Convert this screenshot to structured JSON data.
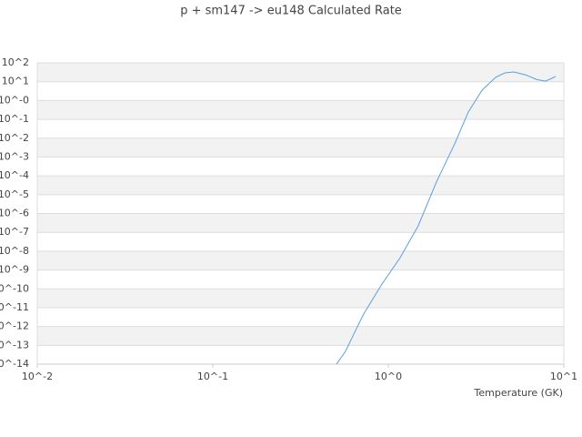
{
  "chart_data": {
    "type": "line",
    "title": "p + sm147 -> eu148 Calculated Rate",
    "x_label": "Temperature (GK)",
    "xscale": "log",
    "yscale": "log",
    "xlim": [
      0.01,
      10
    ],
    "xticks": [
      {
        "value": 0.01,
        "label": "10^-2"
      },
      {
        "value": 0.1,
        "label": "10^-1"
      },
      {
        "value": 1,
        "label": "10^0"
      },
      {
        "value": 10,
        "label": "10^1"
      }
    ],
    "ylim": [
      1e-14,
      100
    ],
    "yticks": [
      {
        "value": 100,
        "label": "10^2"
      },
      {
        "value": 10,
        "label": "10^1"
      },
      {
        "value": 1,
        "label": "10^-0"
      },
      {
        "value": 0.1,
        "label": "10^-1"
      },
      {
        "value": 0.01,
        "label": "10^-2"
      },
      {
        "value": 0.001,
        "label": "10^-3"
      },
      {
        "value": 0.0001,
        "label": "10^-4"
      },
      {
        "value": 1e-05,
        "label": "10^-5"
      },
      {
        "value": 1e-06,
        "label": "10^-6"
      },
      {
        "value": 1e-07,
        "label": "10^-7"
      },
      {
        "value": 1e-08,
        "label": "10^-8"
      },
      {
        "value": 1e-09,
        "label": "10^-9"
      },
      {
        "value": 1e-10,
        "label": "10^-10"
      },
      {
        "value": 1e-11,
        "label": "10^-11"
      },
      {
        "value": 1e-12,
        "label": "10^-12"
      },
      {
        "value": 1e-13,
        "label": "10^-13"
      },
      {
        "value": 1e-14,
        "label": "10^-14"
      }
    ],
    "grid": true,
    "band_color": "#f2f2f2",
    "x": [
      0.507,
      0.57,
      0.643,
      0.724,
      0.92,
      1.17,
      1.48,
      1.88,
      2.39,
      2.86,
      3.42,
      4.09,
      4.6,
      5.19,
      6.06,
      7.0,
      7.88,
      8.97
    ],
    "series": [
      {
        "color": "#5a9fe0",
        "values": [
          1e-14,
          4.8e-14,
          4.9e-13,
          4.6e-12,
          1.8e-10,
          4.6e-09,
          2.2e-07,
          4.7e-05,
          0.005,
          0.25,
          3.5,
          17,
          29,
          33,
          23,
          13,
          10.7,
          18.6
        ]
      }
    ]
  }
}
